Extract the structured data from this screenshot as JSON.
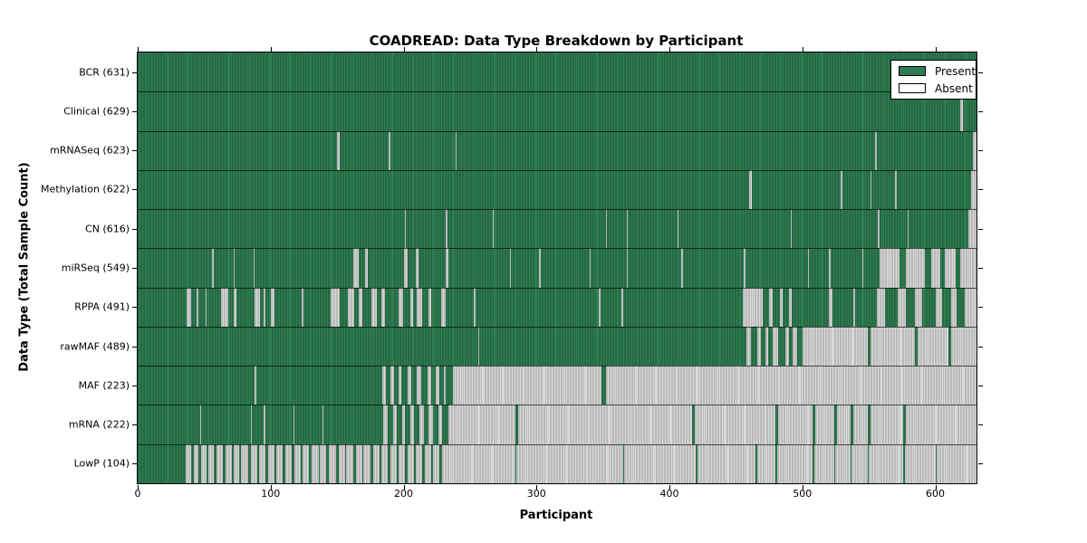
{
  "chart_data": {
    "type": "heatmap",
    "title": "COADREAD: Data Type Breakdown by Participant",
    "xlabel": "Participant",
    "ylabel": "Data Type (Total Sample Count)",
    "x_max": 631,
    "x_ticks": [
      0,
      100,
      200,
      300,
      400,
      500,
      600
    ],
    "grid": false,
    "colors": {
      "present": "#2e7d51",
      "present_edge": "#1e5838",
      "absent": "#d9d9d9",
      "absent_edge": "#9b9b9b",
      "frame": "#000000"
    },
    "legend": {
      "position": "upper right",
      "entries": [
        {
          "label": "Present",
          "color": "#2e7d51"
        },
        {
          "label": "Absent",
          "color": "#ffffff"
        }
      ]
    },
    "rows": [
      {
        "name": "bcr",
        "label": "BCR (631)",
        "count": 631,
        "absent": []
      },
      {
        "name": "clinical",
        "label": "Clinical (629)",
        "count": 629,
        "absent": [
          [
            619,
            621
          ]
        ]
      },
      {
        "name": "mrnaseq",
        "label": "mRNASeq (623)",
        "count": 623,
        "absent": [
          [
            150,
            152
          ],
          [
            189,
            190
          ],
          [
            239,
            240
          ],
          [
            555,
            556
          ],
          [
            628,
            631
          ]
        ]
      },
      {
        "name": "methylation",
        "label": "Methylation (622)",
        "count": 622,
        "absent": [
          [
            460,
            462
          ],
          [
            529,
            530
          ],
          [
            551,
            552
          ],
          [
            570,
            571
          ],
          [
            627,
            631
          ]
        ]
      },
      {
        "name": "cn",
        "label": "CN (616)",
        "count": 616,
        "absent": [
          [
            201,
            202
          ],
          [
            232,
            233
          ],
          [
            267,
            268
          ],
          [
            352,
            353
          ],
          [
            368,
            369
          ],
          [
            406,
            407
          ],
          [
            491,
            492
          ],
          [
            557,
            558
          ],
          [
            579,
            580
          ],
          [
            625,
            631
          ]
        ]
      },
      {
        "name": "mirseq",
        "label": "miRSeq (549)",
        "count": 549,
        "absent": [
          [
            56,
            57
          ],
          [
            72,
            73
          ],
          [
            87,
            88
          ],
          [
            162,
            166
          ],
          [
            171,
            173
          ],
          [
            200,
            203
          ],
          [
            209,
            211
          ],
          [
            232,
            234
          ],
          [
            280,
            281
          ],
          [
            302,
            303
          ],
          [
            340,
            341
          ],
          [
            368,
            369
          ],
          [
            409,
            410
          ],
          [
            456,
            457
          ],
          [
            504,
            505
          ],
          [
            520,
            521
          ],
          [
            545,
            546
          ],
          [
            558,
            573
          ],
          [
            578,
            592
          ],
          [
            597,
            604
          ],
          [
            607,
            615
          ],
          [
            619,
            631
          ]
        ]
      },
      {
        "name": "rppa",
        "label": "RPPA (491)",
        "count": 491,
        "absent": [
          [
            37,
            40
          ],
          [
            44,
            46
          ],
          [
            51,
            52
          ],
          [
            63,
            68
          ],
          [
            72,
            74
          ],
          [
            88,
            92
          ],
          [
            95,
            96
          ],
          [
            100,
            103
          ],
          [
            123,
            125
          ],
          [
            145,
            152
          ],
          [
            158,
            163
          ],
          [
            166,
            169
          ],
          [
            176,
            180
          ],
          [
            183,
            186
          ],
          [
            196,
            200
          ],
          [
            205,
            207
          ],
          [
            210,
            214
          ],
          [
            219,
            221
          ],
          [
            228,
            232
          ],
          [
            253,
            254
          ],
          [
            347,
            348
          ],
          [
            364,
            365
          ],
          [
            455,
            470
          ],
          [
            475,
            478
          ],
          [
            483,
            485
          ],
          [
            490,
            492
          ],
          [
            520,
            523
          ],
          [
            538,
            540
          ],
          [
            556,
            562
          ],
          [
            572,
            578
          ],
          [
            585,
            590
          ],
          [
            600,
            605
          ],
          [
            612,
            616
          ],
          [
            622,
            631
          ]
        ]
      },
      {
        "name": "rawmaf",
        "label": "rawMAF (489)",
        "count": 489,
        "absent": [
          [
            256,
            257
          ],
          [
            458,
            461
          ],
          [
            466,
            469
          ],
          [
            472,
            474
          ],
          [
            478,
            482
          ],
          [
            487,
            490
          ],
          [
            493,
            496
          ],
          [
            500,
            549
          ],
          [
            551,
            585
          ],
          [
            587,
            610
          ],
          [
            612,
            631
          ]
        ]
      },
      {
        "name": "maf",
        "label": "MAF (223)",
        "count": 223,
        "absent": [
          [
            88,
            89
          ],
          [
            184,
            187
          ],
          [
            190,
            193
          ],
          [
            196,
            198
          ],
          [
            203,
            206
          ],
          [
            210,
            213
          ],
          [
            218,
            221
          ],
          [
            224,
            227
          ],
          [
            230,
            232
          ],
          [
            237,
            349
          ],
          [
            352,
            631
          ]
        ]
      },
      {
        "name": "mrna",
        "label": "mRNA (222)",
        "count": 222,
        "absent": [
          [
            47,
            48
          ],
          [
            85,
            86
          ],
          [
            95,
            96
          ],
          [
            117,
            118
          ],
          [
            139,
            140
          ],
          [
            185,
            188
          ],
          [
            192,
            195
          ],
          [
            199,
            201
          ],
          [
            205,
            208
          ],
          [
            212,
            215
          ],
          [
            219,
            222
          ],
          [
            226,
            229
          ],
          [
            234,
            284
          ],
          [
            286,
            417
          ],
          [
            419,
            480
          ],
          [
            482,
            508
          ],
          [
            510,
            524
          ],
          [
            526,
            536
          ],
          [
            538,
            549
          ],
          [
            551,
            576
          ],
          [
            578,
            631
          ]
        ]
      },
      {
        "name": "lowp",
        "label": "LowP (104)",
        "count": 104,
        "absent": [
          [
            36,
            40
          ],
          [
            42,
            46
          ],
          [
            48,
            52
          ],
          [
            53,
            57
          ],
          [
            59,
            64
          ],
          [
            66,
            71
          ],
          [
            72,
            76
          ],
          [
            78,
            83
          ],
          [
            85,
            90
          ],
          [
            91,
            96
          ],
          [
            98,
            103
          ],
          [
            104,
            109
          ],
          [
            111,
            116
          ],
          [
            118,
            123
          ],
          [
            124,
            129
          ],
          [
            131,
            136
          ],
          [
            137,
            142
          ],
          [
            144,
            149
          ],
          [
            151,
            156
          ],
          [
            157,
            162
          ],
          [
            164,
            169
          ],
          [
            170,
            175
          ],
          [
            177,
            182
          ],
          [
            183,
            188
          ],
          [
            190,
            195
          ],
          [
            196,
            201
          ],
          [
            203,
            208
          ],
          [
            209,
            214
          ],
          [
            216,
            221
          ],
          [
            222,
            227
          ],
          [
            229,
            284
          ],
          [
            285,
            365
          ],
          [
            366,
            420
          ],
          [
            421,
            465
          ],
          [
            466,
            480
          ],
          [
            481,
            508
          ],
          [
            509,
            524
          ],
          [
            525,
            536
          ],
          [
            537,
            549
          ],
          [
            550,
            576
          ],
          [
            577,
            600
          ],
          [
            601,
            631
          ]
        ]
      }
    ]
  }
}
